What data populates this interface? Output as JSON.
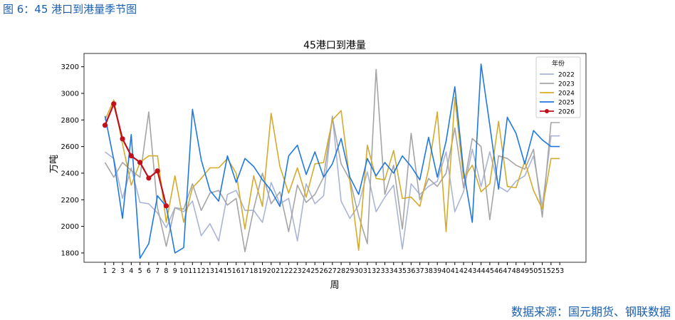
{
  "header": {
    "title": "图 6：45 港口到港量季节图"
  },
  "chart_data": {
    "type": "line",
    "title": "45港口到港量",
    "x_label": "周",
    "y_label": "万吨",
    "legend_title": "年份",
    "legend": "upper right",
    "x": [
      1,
      2,
      3,
      4,
      5,
      6,
      7,
      8,
      9,
      10,
      11,
      12,
      13,
      14,
      15,
      16,
      17,
      18,
      19,
      20,
      21,
      22,
      23,
      24,
      25,
      26,
      27,
      28,
      29,
      30,
      31,
      32,
      33,
      34,
      35,
      36,
      37,
      38,
      39,
      40,
      41,
      42,
      43,
      44,
      45,
      46,
      47,
      48,
      49,
      50,
      51,
      52,
      53
    ],
    "xlim": [
      -1.4,
      56
    ],
    "xticks": [
      1,
      2,
      3,
      4,
      5,
      6,
      7,
      8,
      9,
      10,
      11,
      12,
      13,
      14,
      15,
      16,
      17,
      18,
      19,
      20,
      21,
      22,
      23,
      24,
      25,
      26,
      27,
      28,
      29,
      30,
      31,
      32,
      33,
      34,
      35,
      36,
      37,
      38,
      39,
      40,
      41,
      42,
      43,
      44,
      45,
      46,
      47,
      48,
      49,
      50,
      51,
      52,
      53
    ],
    "ylim": [
      1730,
      3300
    ],
    "yticks": [
      1800,
      2000,
      2200,
      2400,
      2600,
      2800,
      3000,
      3200
    ],
    "series": [
      {
        "name": "2022",
        "color": "#aab4d6",
        "values": [
          2560,
          2510,
          2210,
          2440,
          2180,
          2170,
          2100,
          1990,
          2140,
          2110,
          2190,
          1930,
          2020,
          1890,
          2240,
          2270,
          2120,
          2120,
          2030,
          2330,
          2170,
          2210,
          1890,
          2320,
          2170,
          2230,
          2830,
          2190,
          2060,
          2160,
          2410,
          2110,
          2220,
          2310,
          1830,
          2320,
          2240,
          2300,
          2340,
          2560,
          2110,
          2260,
          2580,
          2300,
          2560,
          2300,
          2260,
          2340,
          2380,
          2530,
          2150,
          2680,
          2680
        ]
      },
      {
        "name": "2023",
        "color": "#a5a5a5",
        "values": [
          2480,
          2370,
          2480,
          2420,
          2370,
          2860,
          2140,
          1850,
          2140,
          2130,
          2320,
          2120,
          2250,
          2270,
          2160,
          2210,
          1810,
          2130,
          2400,
          2170,
          2260,
          1960,
          2310,
          2180,
          2240,
          2370,
          2820,
          2470,
          2350,
          2080,
          1870,
          3180,
          2240,
          2460,
          1980,
          2700,
          2200,
          2360,
          2300,
          2400,
          2740,
          2290,
          2660,
          2600,
          2050,
          2530,
          2510,
          2460,
          2430,
          2580,
          2070,
          2780,
          2780
        ]
      },
      {
        "name": "2024",
        "color": "#d4ab2c",
        "values": [
          2800,
          2950,
          2620,
          2310,
          2480,
          2530,
          2530,
          2030,
          2380,
          2030,
          2290,
          2360,
          2440,
          2440,
          2510,
          2400,
          1980,
          2380,
          2150,
          2850,
          2450,
          2250,
          2440,
          2220,
          2470,
          2480,
          2800,
          2870,
          2340,
          1820,
          2610,
          2360,
          2350,
          2570,
          2210,
          2220,
          2150,
          2430,
          2860,
          1960,
          2970,
          2360,
          2460,
          2260,
          2320,
          2790,
          2300,
          2290,
          2490,
          2270,
          2130,
          2510,
          2510
        ]
      },
      {
        "name": "2025",
        "color": "#1f78e0",
        "values": [
          2830,
          2500,
          2060,
          2690,
          1760,
          1870,
          2230,
          2150,
          1800,
          1840,
          2880,
          2500,
          2270,
          2190,
          2530,
          2330,
          2510,
          2450,
          2350,
          2270,
          2150,
          2530,
          2610,
          2390,
          2560,
          2370,
          2470,
          2660,
          2370,
          2240,
          2510,
          2380,
          2480,
          2400,
          2530,
          2450,
          2350,
          2670,
          2370,
          2640,
          3050,
          2420,
          2030,
          3220,
          2760,
          2280,
          2820,
          2700,
          2470,
          2720,
          2650,
          2600,
          2600
        ]
      },
      {
        "name": "2026",
        "color": "#c0101a",
        "marker": "o",
        "values": [
          2760,
          2921,
          2658,
          2530,
          2481,
          2363,
          2417,
          2154,
          null,
          null,
          null,
          null,
          null,
          null,
          null,
          null,
          null,
          null,
          null,
          null,
          null,
          null,
          null,
          null,
          null,
          null,
          null,
          null,
          null,
          null,
          null,
          null,
          null,
          null,
          null,
          null,
          null,
          null,
          null,
          null,
          null,
          null,
          null,
          null,
          null,
          null,
          null,
          null,
          null,
          null,
          null,
          null,
          null
        ]
      }
    ]
  },
  "footer": {
    "source": "数据来源：国元期货、钢联数据"
  }
}
